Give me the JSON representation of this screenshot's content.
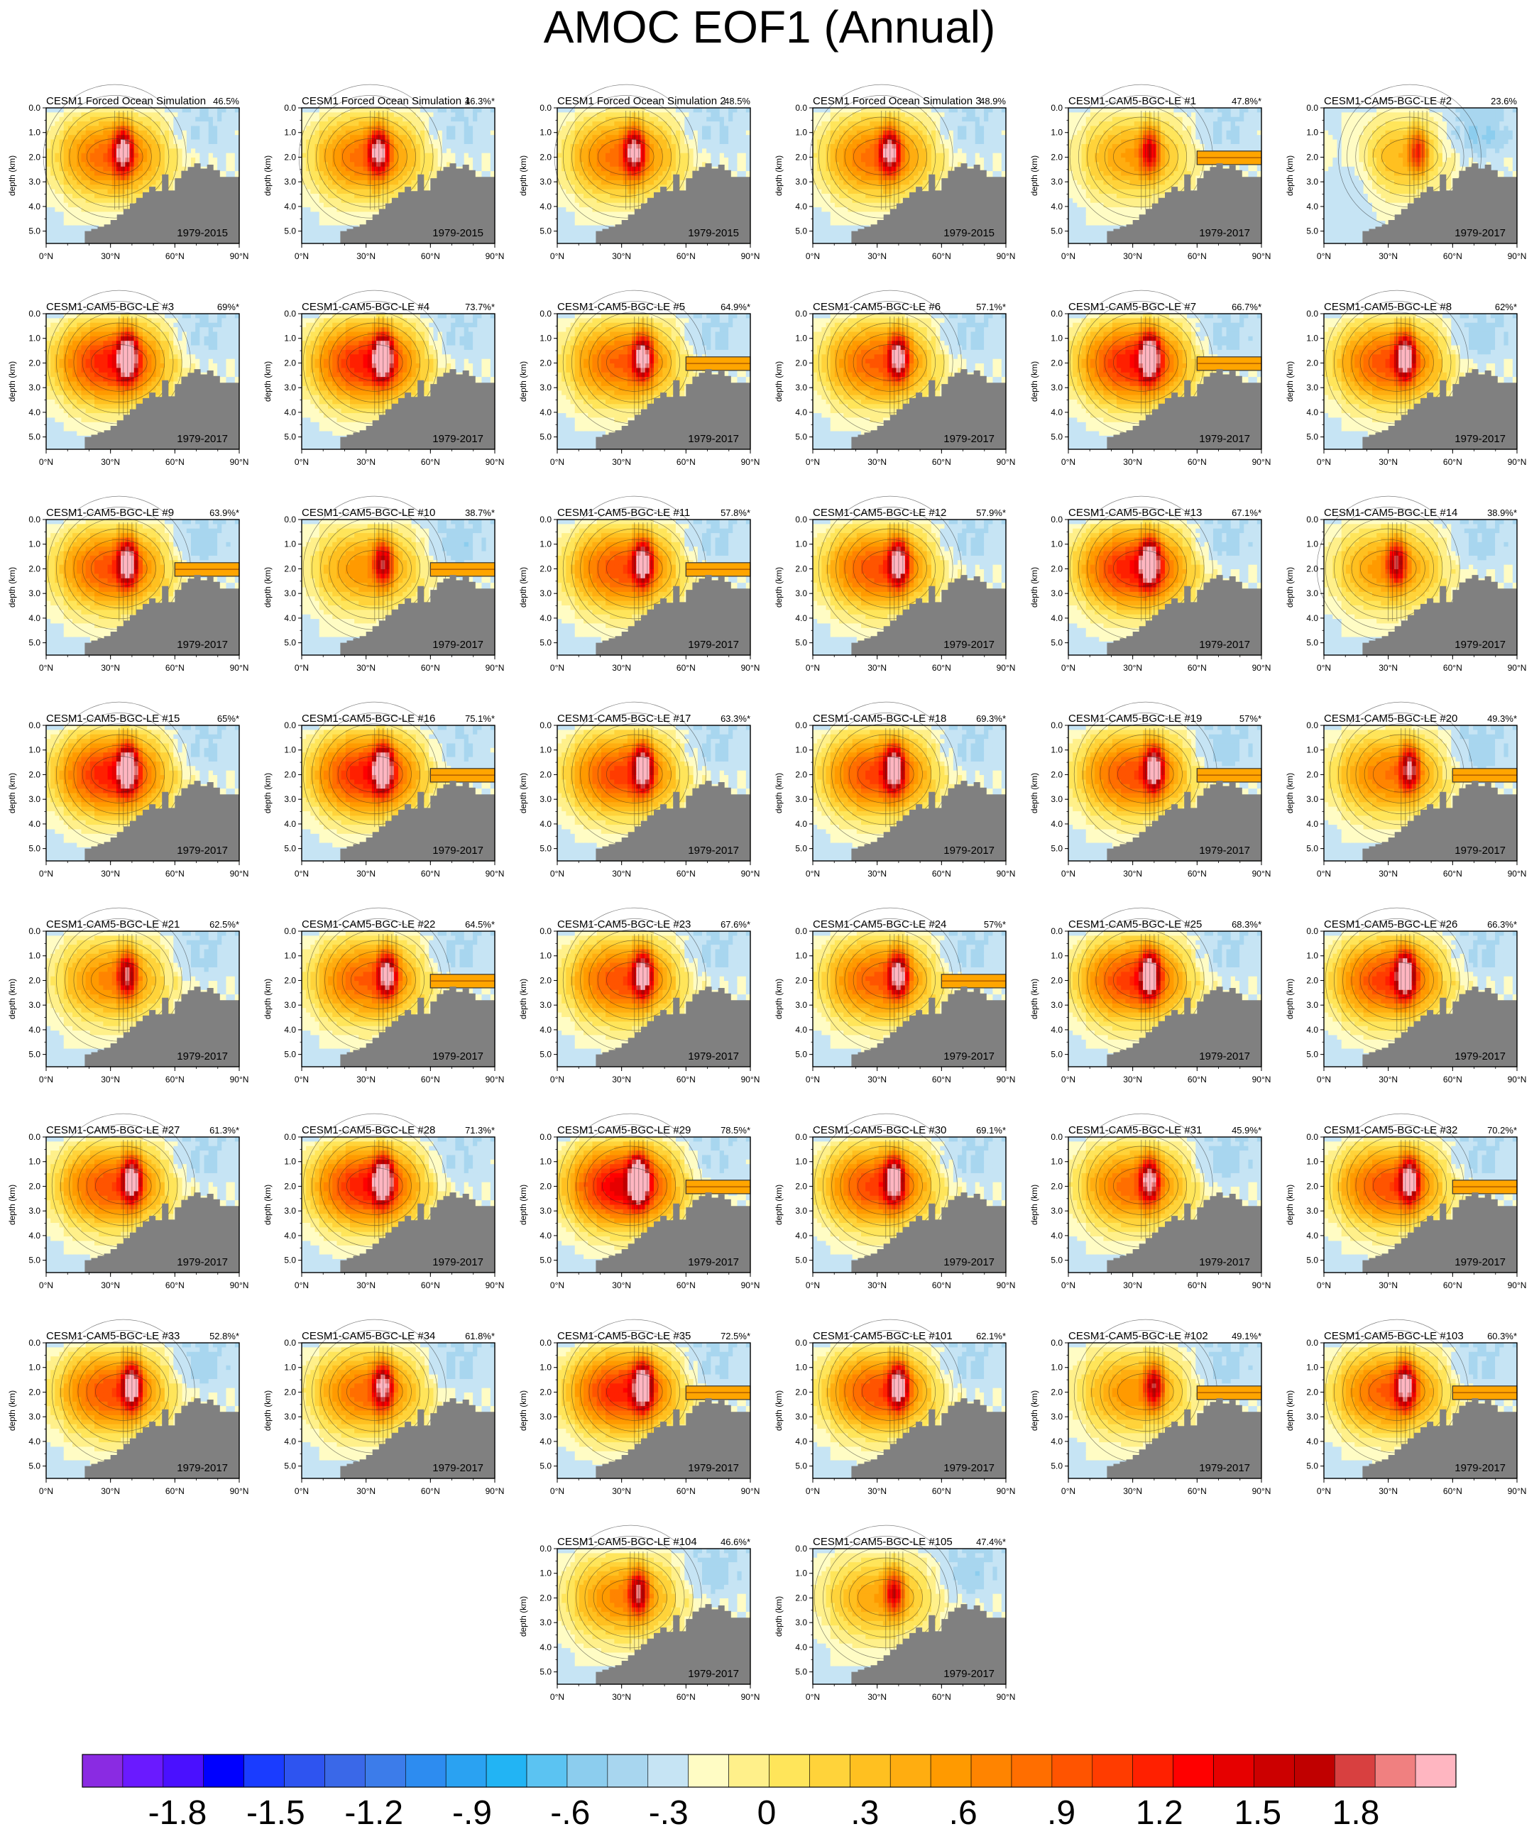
{
  "chart_data": {
    "type": "heatmap",
    "title": "AMOC EOF1 (Annual)",
    "ylabel": "depth (km)",
    "xticks": [
      "0°N",
      "30°N",
      "60°N",
      "90°N"
    ],
    "yticks": [
      "0.0",
      "1.0",
      "2.0",
      "3.0",
      "4.0",
      "5.0"
    ],
    "xlim": [
      0,
      90
    ],
    "ylim": [
      5.5,
      0
    ],
    "panels": [
      {
        "title": "CESM1 Forced Ocean Simulation",
        "pct": "46.5%",
        "period": "1979-2015",
        "strength": 1.45,
        "lat_peak": 36,
        "asym": 0.0,
        "shelf": false
      },
      {
        "title": "CESM1 Forced Ocean Simulation 1",
        "pct": "46.3%*",
        "period": "1979-2015",
        "strength": 1.4,
        "lat_peak": 36,
        "asym": 0.0,
        "shelf": false
      },
      {
        "title": "CESM1 Forced Ocean Simulation 2",
        "pct": "48.5%",
        "period": "1979-2015",
        "strength": 1.4,
        "lat_peak": 36,
        "asym": 0.0,
        "shelf": false
      },
      {
        "title": "CESM1 Forced Ocean Simulation 3",
        "pct": "48.9%",
        "period": "1979-2015",
        "strength": 1.4,
        "lat_peak": 36,
        "asym": 0.0,
        "shelf": false
      },
      {
        "title": "CESM1-CAM5-BGC-LE #1",
        "pct": "47.8%*",
        "period": "1979-2017",
        "strength": 1.0,
        "lat_peak": 38,
        "asym": 0.0,
        "shelf": true
      },
      {
        "title": "CESM1-CAM5-BGC-LE #2",
        "pct": "23.6%",
        "period": "1979-2017",
        "strength": 0.85,
        "lat_peak": 44,
        "asym": 0.6,
        "shelf": false
      },
      {
        "title": "CESM1-CAM5-BGC-LE #3",
        "pct": "69%*",
        "period": "1979-2017",
        "strength": 1.95,
        "lat_peak": 38,
        "asym": 0.1,
        "shelf": false
      },
      {
        "title": "CESM1-CAM5-BGC-LE #4",
        "pct": "73.7%*",
        "period": "1979-2017",
        "strength": 1.95,
        "lat_peak": 38,
        "asym": 0.1,
        "shelf": false
      },
      {
        "title": "CESM1-CAM5-BGC-LE #5",
        "pct": "64.9%*",
        "period": "1979-2017",
        "strength": 1.5,
        "lat_peak": 40,
        "asym": 0.1,
        "shelf": true
      },
      {
        "title": "CESM1-CAM5-BGC-LE #6",
        "pct": "57.1%*",
        "period": "1979-2017",
        "strength": 1.5,
        "lat_peak": 40,
        "asym": 0.1,
        "shelf": false
      },
      {
        "title": "CESM1-CAM5-BGC-LE #7",
        "pct": "66.7%*",
        "period": "1979-2017",
        "strength": 1.95,
        "lat_peak": 38,
        "asym": 0.2,
        "shelf": true
      },
      {
        "title": "CESM1-CAM5-BGC-LE #8",
        "pct": "62%*",
        "period": "1979-2017",
        "strength": 1.6,
        "lat_peak": 38,
        "asym": 0.3,
        "shelf": false
      },
      {
        "title": "CESM1-CAM5-BGC-LE #9",
        "pct": "63.9%*",
        "period": "1979-2017",
        "strength": 1.6,
        "lat_peak": 38,
        "asym": 0.2,
        "shelf": true
      },
      {
        "title": "CESM1-CAM5-BGC-LE #10",
        "pct": "38.7%*",
        "period": "1979-2017",
        "strength": 1.1,
        "lat_peak": 38,
        "asym": 0.3,
        "shelf": true
      },
      {
        "title": "CESM1-CAM5-BGC-LE #11",
        "pct": "57.8%*",
        "period": "1979-2017",
        "strength": 1.6,
        "lat_peak": 40,
        "asym": 0.1,
        "shelf": true
      },
      {
        "title": "CESM1-CAM5-BGC-LE #12",
        "pct": "57.9%*",
        "period": "1979-2017",
        "strength": 1.6,
        "lat_peak": 40,
        "asym": 0.1,
        "shelf": false
      },
      {
        "title": "CESM1-CAM5-BGC-LE #13",
        "pct": "67.1%*",
        "period": "1979-2017",
        "strength": 1.95,
        "lat_peak": 38,
        "asym": 0.2,
        "shelf": false
      },
      {
        "title": "CESM1-CAM5-BGC-LE #14",
        "pct": "38.9%*",
        "period": "1979-2017",
        "strength": 1.1,
        "lat_peak": 34,
        "asym": 0.1,
        "shelf": false
      },
      {
        "title": "CESM1-CAM5-BGC-LE #15",
        "pct": "65%*",
        "period": "1979-2017",
        "strength": 1.95,
        "lat_peak": 38,
        "asym": 0.1,
        "shelf": false
      },
      {
        "title": "CESM1-CAM5-BGC-LE #16",
        "pct": "75.1%*",
        "period": "1979-2017",
        "strength": 1.95,
        "lat_peak": 38,
        "asym": 0.0,
        "shelf": true
      },
      {
        "title": "CESM1-CAM5-BGC-LE #17",
        "pct": "63.3%*",
        "period": "1979-2017",
        "strength": 1.7,
        "lat_peak": 40,
        "asym": 0.1,
        "shelf": false
      },
      {
        "title": "CESM1-CAM5-BGC-LE #18",
        "pct": "69.3%*",
        "period": "1979-2017",
        "strength": 1.7,
        "lat_peak": 38,
        "asym": 0.1,
        "shelf": false
      },
      {
        "title": "CESM1-CAM5-BGC-LE #19",
        "pct": "57%*",
        "period": "1979-2017",
        "strength": 1.6,
        "lat_peak": 40,
        "asym": 0.3,
        "shelf": true
      },
      {
        "title": "CESM1-CAM5-BGC-LE #20",
        "pct": "49.3%*",
        "period": "1979-2017",
        "strength": 1.3,
        "lat_peak": 40,
        "asym": 0.3,
        "shelf": true
      },
      {
        "title": "CESM1-CAM5-BGC-LE #21",
        "pct": "62.5%*",
        "period": "1979-2017",
        "strength": 1.2,
        "lat_peak": 38,
        "asym": 0.1,
        "shelf": false
      },
      {
        "title": "CESM1-CAM5-BGC-LE #22",
        "pct": "64.5%*",
        "period": "1979-2017",
        "strength": 1.5,
        "lat_peak": 40,
        "asym": 0.1,
        "shelf": true
      },
      {
        "title": "CESM1-CAM5-BGC-LE #23",
        "pct": "67.6%*",
        "period": "1979-2017",
        "strength": 1.6,
        "lat_peak": 40,
        "asym": 0.1,
        "shelf": false
      },
      {
        "title": "CESM1-CAM5-BGC-LE #24",
        "pct": "57%*",
        "period": "1979-2017",
        "strength": 1.5,
        "lat_peak": 40,
        "asym": 0.1,
        "shelf": true
      },
      {
        "title": "CESM1-CAM5-BGC-LE #25",
        "pct": "68.3%*",
        "period": "1979-2017",
        "strength": 1.75,
        "lat_peak": 38,
        "asym": 0.1,
        "shelf": false
      },
      {
        "title": "CESM1-CAM5-BGC-LE #26",
        "pct": "66.3%*",
        "period": "1979-2017",
        "strength": 1.75,
        "lat_peak": 38,
        "asym": 0.1,
        "shelf": false
      },
      {
        "title": "CESM1-CAM5-BGC-LE #27",
        "pct": "61.3%*",
        "period": "1979-2017",
        "strength": 1.6,
        "lat_peak": 40,
        "asym": 0.1,
        "shelf": false
      },
      {
        "title": "CESM1-CAM5-BGC-LE #28",
        "pct": "71.3%*",
        "period": "1979-2017",
        "strength": 1.95,
        "lat_peak": 38,
        "asym": 0.0,
        "shelf": false
      },
      {
        "title": "CESM1-CAM5-BGC-LE #29",
        "pct": "78.5%*",
        "period": "1979-2017",
        "strength": 2.2,
        "lat_peak": 38,
        "asym": 0.0,
        "shelf": true
      },
      {
        "title": "CESM1-CAM5-BGC-LE #30",
        "pct": "69.1%*",
        "period": "1979-2017",
        "strength": 1.7,
        "lat_peak": 38,
        "asym": 0.1,
        "shelf": false
      },
      {
        "title": "CESM1-CAM5-BGC-LE #31",
        "pct": "45.9%*",
        "period": "1979-2017",
        "strength": 1.4,
        "lat_peak": 38,
        "asym": 0.2,
        "shelf": false
      },
      {
        "title": "CESM1-CAM5-BGC-LE #32",
        "pct": "70.2%*",
        "period": "1979-2017",
        "strength": 1.6,
        "lat_peak": 40,
        "asym": 0.1,
        "shelf": true
      },
      {
        "title": "CESM1-CAM5-BGC-LE #33",
        "pct": "52.8%*",
        "period": "1979-2017",
        "strength": 1.6,
        "lat_peak": 40,
        "asym": 0.2,
        "shelf": false
      },
      {
        "title": "CESM1-CAM5-BGC-LE #34",
        "pct": "61.8%*",
        "period": "1979-2017",
        "strength": 1.4,
        "lat_peak": 38,
        "asym": 0.1,
        "shelf": false
      },
      {
        "title": "CESM1-CAM5-BGC-LE #35",
        "pct": "72.5%*",
        "period": "1979-2017",
        "strength": 1.9,
        "lat_peak": 40,
        "asym": 0.1,
        "shelf": true
      },
      {
        "title": "CESM1-CAM5-BGC-LE #101",
        "pct": "62.1%*",
        "period": "1979-2017",
        "strength": 1.6,
        "lat_peak": 40,
        "asym": 0.1,
        "shelf": false
      },
      {
        "title": "CESM1-CAM5-BGC-LE #102",
        "pct": "49.1%*",
        "period": "1979-2017",
        "strength": 1.1,
        "lat_peak": 40,
        "asym": 0.1,
        "shelf": true
      },
      {
        "title": "CESM1-CAM5-BGC-LE #103",
        "pct": "60.3%*",
        "period": "1979-2017",
        "strength": 1.5,
        "lat_peak": 38,
        "asym": 0.1,
        "shelf": true
      },
      {
        "title": "CESM1-CAM5-BGC-LE #104",
        "pct": "46.6%*",
        "period": "1979-2017",
        "strength": 1.2,
        "lat_peak": 38,
        "asym": 0.2,
        "shelf": false
      },
      {
        "title": "CESM1-CAM5-BGC-LE #105",
        "pct": "47.4%*",
        "period": "1979-2017",
        "strength": 0.95,
        "lat_peak": 38,
        "asym": 0.3,
        "shelf": false
      }
    ],
    "colorbar": {
      "colors": [
        "#8a2be2",
        "#6a1aff",
        "#4a10ff",
        "#0000ff",
        "#1a3cff",
        "#2e54f0",
        "#3a68e8",
        "#3c7cea",
        "#2d8cf0",
        "#2aa2f2",
        "#22b4f4",
        "#5bc3f2",
        "#8ccdee",
        "#a8d6ef",
        "#c6e4f4",
        "#fffcc4",
        "#fff08a",
        "#ffe55a",
        "#ffd33a",
        "#ffc020",
        "#ffad10",
        "#ff9a00",
        "#ff8400",
        "#ff6e00",
        "#ff5400",
        "#ff3c00",
        "#ff2000",
        "#ff0000",
        "#e60000",
        "#cc0000",
        "#c00000",
        "#d84040",
        "#f08080",
        "#ffb6c1"
      ],
      "tick_labels": [
        "-1.8",
        "-1.5",
        "-1.2",
        "-.9",
        "-.6",
        "-.3",
        "0",
        ".3",
        ".6",
        ".9",
        "1.2",
        "1.5",
        "1.8"
      ]
    }
  }
}
